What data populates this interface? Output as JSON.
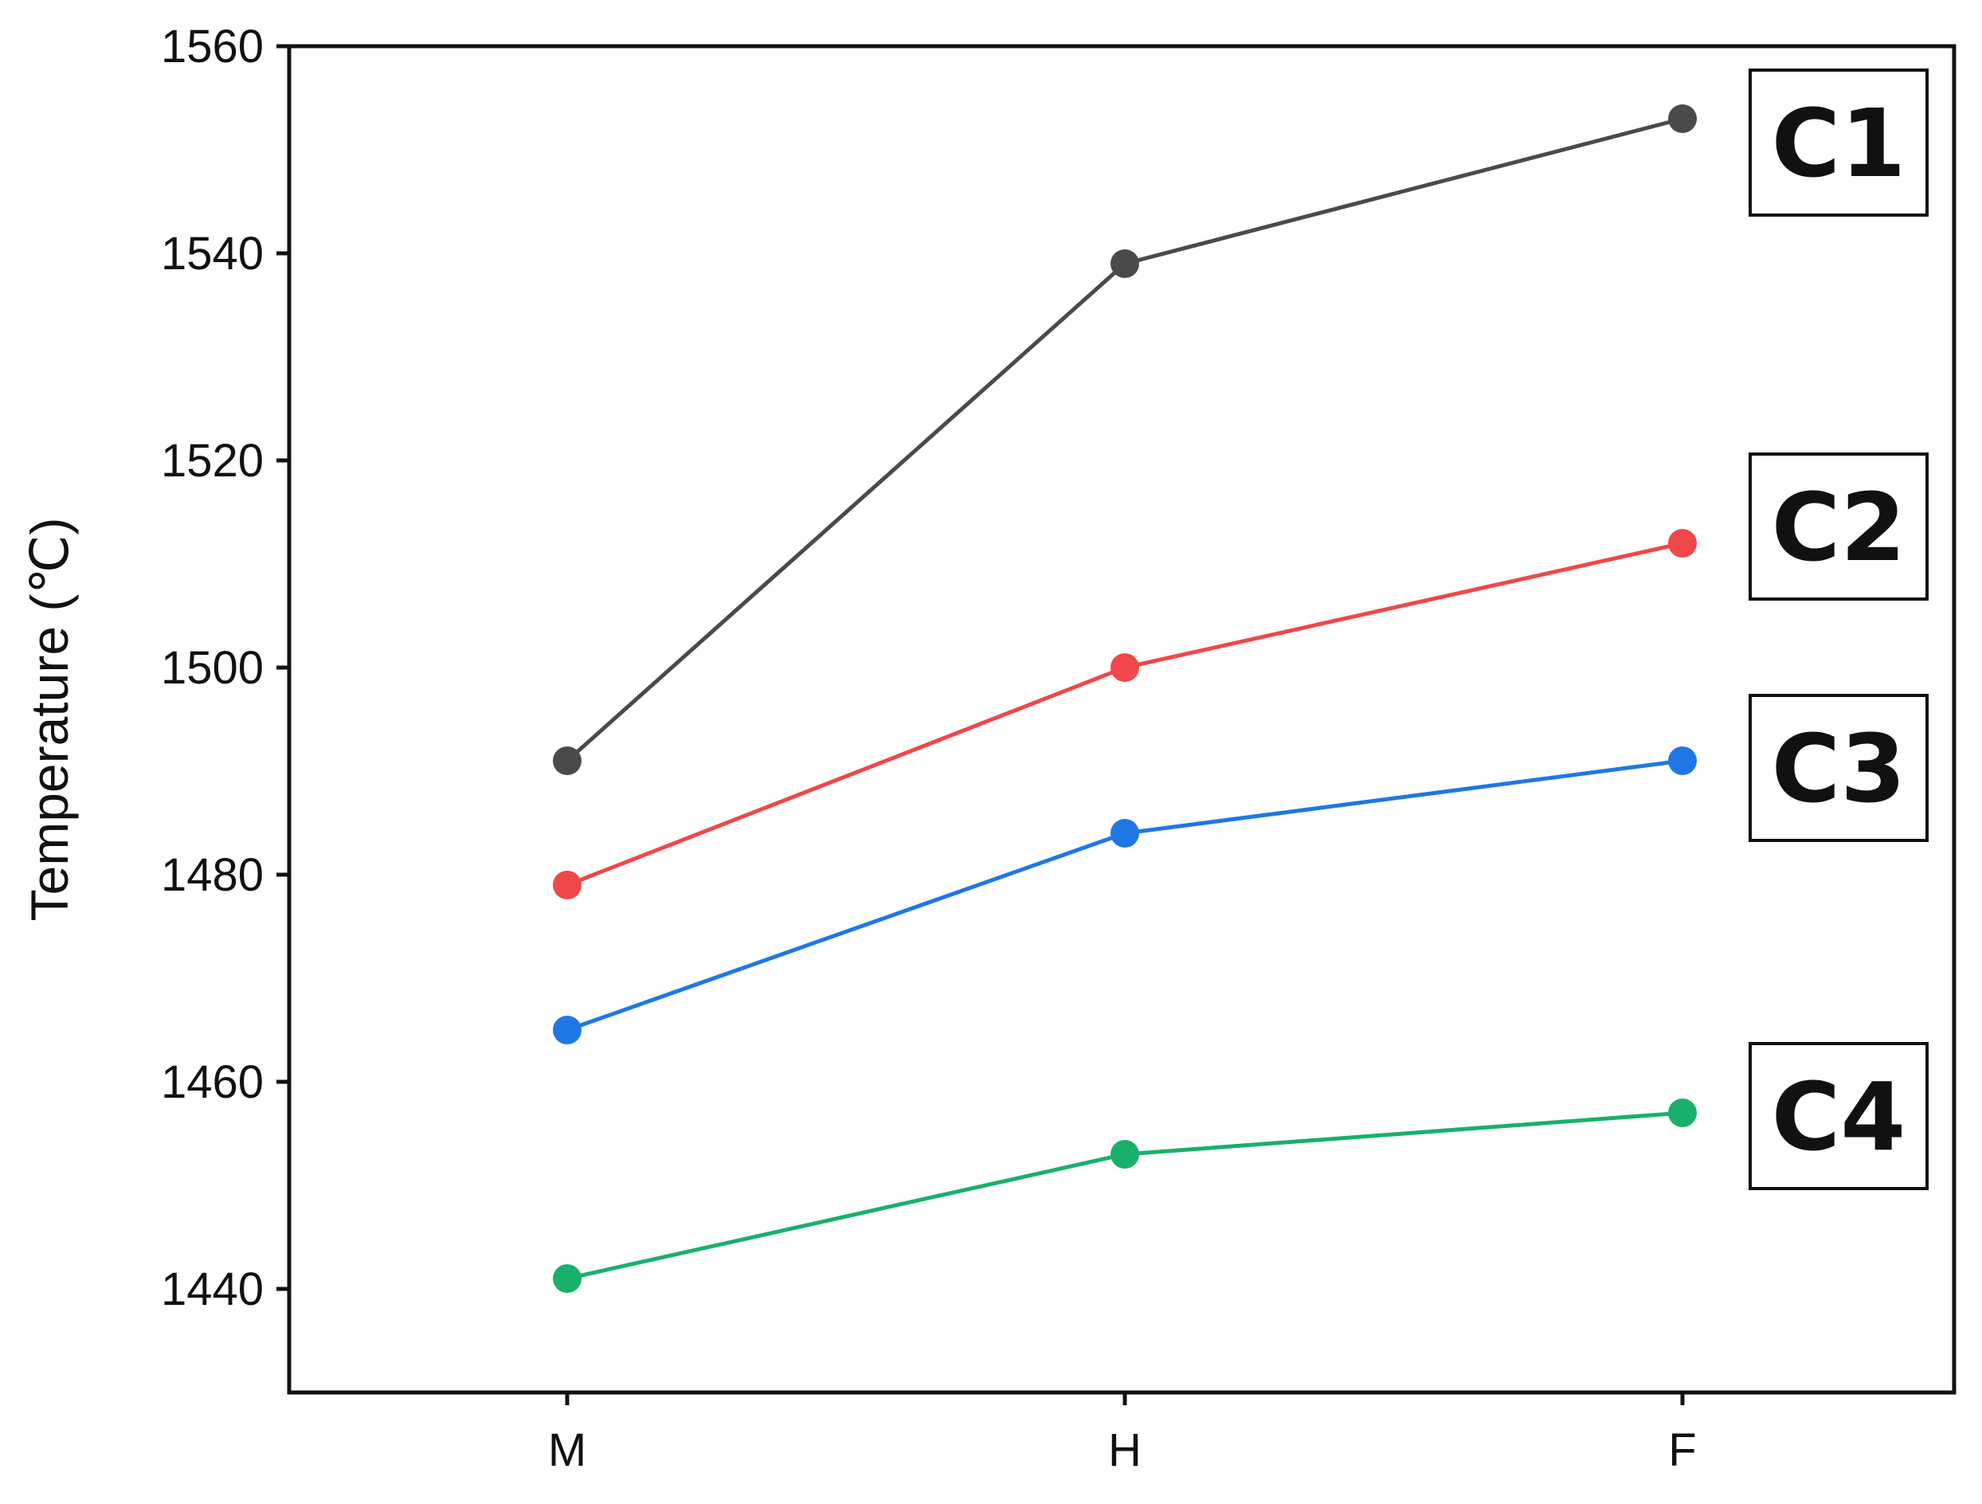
{
  "chart_data": {
    "type": "line",
    "title": "",
    "xlabel": "",
    "ylabel": "Temperature (℃)",
    "categories": [
      "M",
      "H",
      "F"
    ],
    "ylim": [
      1430,
      1560
    ],
    "yticks": [
      1440,
      1460,
      1480,
      1500,
      1520,
      1540,
      1560
    ],
    "grid": false,
    "series": [
      {
        "name": "C1",
        "color": "#4a4a4a",
        "values": [
          1491,
          1539,
          1553
        ]
      },
      {
        "name": "C2",
        "color": "#f0474a",
        "values": [
          1479,
          1500,
          1512
        ]
      },
      {
        "name": "C3",
        "color": "#1f77e6",
        "values": [
          1465,
          1484,
          1491
        ]
      },
      {
        "name": "C4",
        "color": "#19b06b",
        "values": [
          1441,
          1453,
          1457
        ]
      }
    ]
  }
}
